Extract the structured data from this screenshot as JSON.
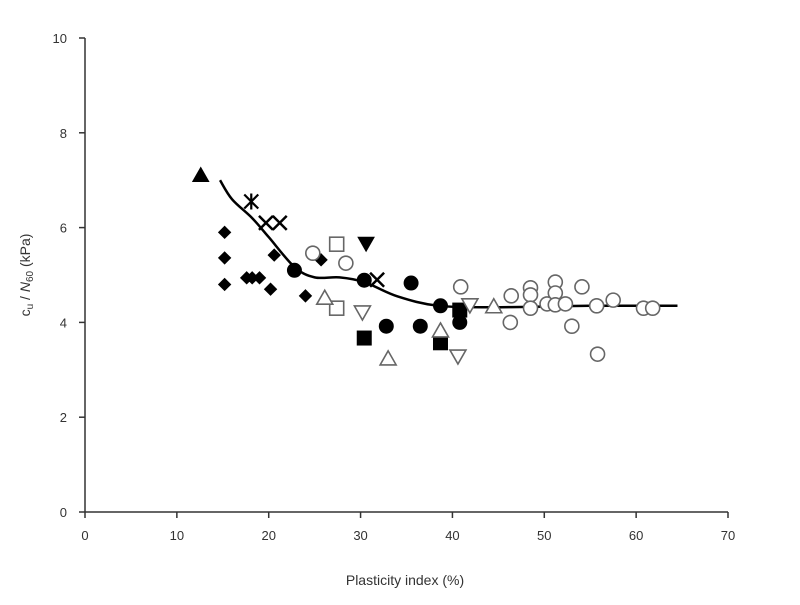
{
  "chart_data": {
    "type": "scatter",
    "title": "",
    "xlabel": "Plasticity index (%)",
    "ylabel": {
      "base": "c",
      "base_sub": "u",
      "sep": " / ",
      "n": "N",
      "n_sub": "60",
      "unit": " (kPa)"
    },
    "xlim": [
      0,
      70
    ],
    "ylim": [
      0,
      10
    ],
    "xticks": [
      "0",
      "10",
      "20",
      "30",
      "40",
      "50",
      "60",
      "70"
    ],
    "yticks": [
      "0",
      "2",
      "4",
      "6",
      "8",
      "10"
    ],
    "grid": false,
    "legend": "none",
    "colors": {
      "axis": "#333333",
      "filled": "#000000",
      "open": "#666666",
      "curve": "#000000"
    },
    "series": [
      {
        "marker": "triangle-up-filled",
        "points": [
          [
            12.6,
            7.1
          ]
        ]
      },
      {
        "marker": "asterisk",
        "points": [
          [
            18.1,
            6.55
          ]
        ]
      },
      {
        "marker": "cross",
        "points": [
          [
            19.7,
            6.1
          ],
          [
            21.2,
            6.1
          ],
          [
            31.8,
            4.9
          ]
        ]
      },
      {
        "marker": "diamond-filled",
        "points": [
          [
            15.2,
            5.9
          ],
          [
            15.2,
            5.36
          ],
          [
            15.2,
            4.8
          ],
          [
            17.6,
            4.94
          ],
          [
            18.2,
            4.94
          ],
          [
            19.0,
            4.94
          ],
          [
            20.2,
            4.7
          ],
          [
            20.6,
            5.42
          ],
          [
            24.0,
            4.56
          ],
          [
            25.7,
            5.32
          ]
        ]
      },
      {
        "marker": "circle-filled",
        "points": [
          [
            22.8,
            5.1
          ],
          [
            30.4,
            4.89
          ],
          [
            35.5,
            4.83
          ],
          [
            32.8,
            3.92
          ],
          [
            36.5,
            3.92
          ],
          [
            38.7,
            4.35
          ],
          [
            40.8,
            4.0
          ]
        ]
      },
      {
        "marker": "square-filled",
        "points": [
          [
            30.4,
            3.67
          ],
          [
            38.7,
            3.57
          ],
          [
            40.8,
            4.26
          ]
        ]
      },
      {
        "marker": "triangle-down-filled",
        "points": [
          [
            30.6,
            5.67
          ]
        ]
      },
      {
        "marker": "square-open",
        "points": [
          [
            27.4,
            5.65
          ],
          [
            27.4,
            4.3
          ]
        ]
      },
      {
        "marker": "triangle-up-open",
        "points": [
          [
            26.1,
            4.51
          ],
          [
            33.0,
            3.23
          ],
          [
            38.7,
            3.82
          ],
          [
            44.5,
            4.33
          ]
        ]
      },
      {
        "marker": "triangle-down-open",
        "points": [
          [
            30.2,
            4.22
          ],
          [
            40.6,
            3.29
          ],
          [
            41.9,
            4.37
          ]
        ]
      },
      {
        "marker": "circle-open",
        "points": [
          [
            24.8,
            5.46
          ],
          [
            28.4,
            5.25
          ],
          [
            40.9,
            4.75
          ],
          [
            46.4,
            4.56
          ],
          [
            46.3,
            4.0
          ],
          [
            48.5,
            4.73
          ],
          [
            48.5,
            4.58
          ],
          [
            48.5,
            4.3
          ],
          [
            50.3,
            4.39
          ],
          [
            51.2,
            4.85
          ],
          [
            51.2,
            4.62
          ],
          [
            51.2,
            4.37
          ],
          [
            52.3,
            4.39
          ],
          [
            54.1,
            4.75
          ],
          [
            53.0,
            3.92
          ],
          [
            55.7,
            4.35
          ],
          [
            55.8,
            3.33
          ],
          [
            57.5,
            4.47
          ],
          [
            60.8,
            4.3
          ],
          [
            61.8,
            4.3
          ]
        ]
      }
    ],
    "trend_curve": [
      [
        14.7,
        7.0
      ],
      [
        16,
        6.6
      ],
      [
        18.2,
        6.2
      ],
      [
        20,
        5.8
      ],
      [
        22.8,
        5.17
      ],
      [
        25,
        4.95
      ],
      [
        27.7,
        4.95
      ],
      [
        30.4,
        4.85
      ],
      [
        34,
        4.55
      ],
      [
        38.5,
        4.35
      ],
      [
        45,
        4.32
      ],
      [
        55,
        4.35
      ],
      [
        64.5,
        4.35
      ]
    ]
  }
}
